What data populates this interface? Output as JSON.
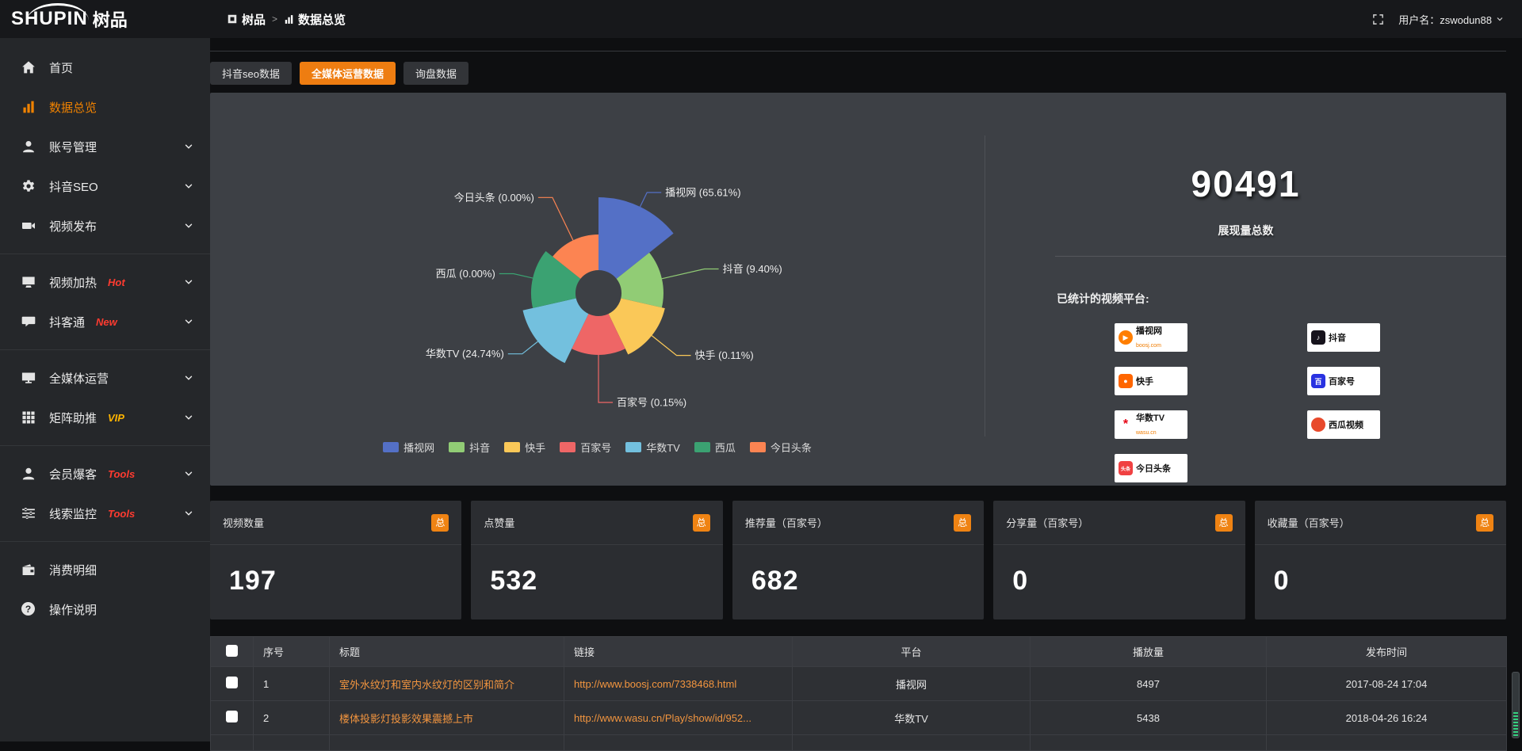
{
  "logo": {
    "latin": "SHUPIN",
    "cjk": "树品"
  },
  "topbar": {
    "breadcrumb_root": "树品",
    "breadcrumb_sep": ">",
    "breadcrumb_current": "数据总览",
    "username": "用户名：zswodun88"
  },
  "sidebar": {
    "items": [
      {
        "key": "home",
        "icon": "home",
        "label": "首页"
      },
      {
        "key": "data-overview",
        "icon": "chart",
        "label": "数据总览",
        "active": true
      },
      {
        "key": "account-manage",
        "icon": "user",
        "label": "账号管理",
        "chevron": true
      },
      {
        "key": "douyin-seo",
        "icon": "gear",
        "label": "抖音SEO",
        "chevron": true
      },
      {
        "key": "video-publish",
        "icon": "video",
        "label": "视频发布",
        "chevron": true,
        "divider_after": true
      },
      {
        "key": "video-heat",
        "icon": "heat",
        "label": "视频加热",
        "badge": "Hot",
        "badge_color": "#ff3b30",
        "chevron": true
      },
      {
        "key": "douketong",
        "icon": "chat",
        "label": "抖客通",
        "badge": "New",
        "badge_color": "#ff3b30",
        "chevron": true,
        "divider_after": true
      },
      {
        "key": "omni-media",
        "icon": "screen",
        "label": "全媒体运营",
        "chevron": true
      },
      {
        "key": "matrix-boost",
        "icon": "grid",
        "label": "矩阵助推",
        "badge": "VIP",
        "badge_color": "#ffb400",
        "chevron": true,
        "divider_after": true
      },
      {
        "key": "member-burst",
        "icon": "member",
        "label": "会员爆客",
        "badge": "Tools",
        "badge_color": "#ff3b30",
        "chevron": true
      },
      {
        "key": "clue-monitor",
        "icon": "sliders",
        "label": "线索监控",
        "badge": "Tools",
        "badge_color": "#ff3b30",
        "chevron": true,
        "divider_after": true
      },
      {
        "key": "consume-detail",
        "icon": "wallet",
        "label": "消费明细"
      },
      {
        "key": "help",
        "icon": "help",
        "label": "操作说明"
      }
    ]
  },
  "tabs": [
    {
      "key": "douyin-seo-data",
      "label": "抖音seo数据",
      "active": false
    },
    {
      "key": "omni-media-data",
      "label": "全媒体运营数据",
      "active": true
    },
    {
      "key": "inquiry-data",
      "label": "询盘数据",
      "active": false
    }
  ],
  "chart_data": {
    "type": "pie",
    "variant": "nightingale-rose",
    "inner_radius": 29,
    "legend_position": "bottom",
    "label_format": "{name} ({value}%)",
    "slices": [
      {
        "name": "播视网",
        "value": 65.61,
        "label": "播视网 (65.61%)",
        "radius": 121,
        "color": "#5470c6"
      },
      {
        "name": "抖音",
        "value": 9.4,
        "label": "抖音 (9.40%)",
        "radius": 82,
        "color": "#91cc75"
      },
      {
        "name": "快手",
        "value": 0.11,
        "label": "快手 (0.11%)",
        "radius": 86,
        "color": "#fac858"
      },
      {
        "name": "百家号",
        "value": 0.15,
        "label": "百家号 (0.15%)",
        "radius": 78,
        "color": "#ee6666"
      },
      {
        "name": "华数TV",
        "value": 24.74,
        "label": "华数TV (24.74%)",
        "radius": 98,
        "color": "#73c0de"
      },
      {
        "name": "西瓜",
        "value": 0.0,
        "label": "西瓜 (0.00%)",
        "radius": 85,
        "color": "#3ba272"
      },
      {
        "name": "今日头条",
        "value": 0.0,
        "label": "今日头条 (0.00%)",
        "radius": 74,
        "color": "#fc8452"
      }
    ]
  },
  "summary": {
    "total_value": "90491",
    "total_label": "展现量总数",
    "platforms_label": "已统计的视频平台:",
    "chips_left": [
      {
        "icon": "boosj",
        "name": "播视网",
        "sub": "boosj.com",
        "color": "#ff7e00",
        "shape": "circle",
        "glyph": "▶"
      },
      {
        "icon": "kuaishou",
        "name": "快手",
        "color": "#ff6600",
        "shape": "square",
        "glyph": "●"
      },
      {
        "icon": "wasu",
        "name": "华数TV",
        "sub": "wasu.cn",
        "color": "#e60012",
        "shape": "plain",
        "glyph": "*"
      },
      {
        "icon": "toutiao",
        "name": "今日头条",
        "color": "#f04142",
        "shape": "square",
        "glyph": "头条"
      }
    ],
    "chips_right": [
      {
        "icon": "douyin",
        "name": "抖音",
        "color": "#16131c",
        "shape": "square",
        "glyph": "♪"
      },
      {
        "icon": "baijia",
        "name": "百家号",
        "color": "#2932e1",
        "shape": "square",
        "glyph": "百"
      },
      {
        "icon": "xigua",
        "name": "西瓜视频",
        "color": "#e8492b",
        "shape": "circle",
        "glyph": ""
      }
    ]
  },
  "stat_cards": [
    {
      "title": "视频数量",
      "badge": "总",
      "value": "197"
    },
    {
      "title": "点赞量",
      "badge": "总",
      "value": "532"
    },
    {
      "title": "推荐量（百家号）",
      "badge": "总",
      "value": "682"
    },
    {
      "title": "分享量（百家号）",
      "badge": "总",
      "value": "0"
    },
    {
      "title": "收藏量（百家号）",
      "badge": "总",
      "value": "0"
    }
  ],
  "table": {
    "headers": [
      "序号",
      "标题",
      "链接",
      "平台",
      "播放量",
      "发布时间"
    ],
    "rows": [
      {
        "index": "1",
        "title": "室外水纹灯和室内水纹灯的区别和简介",
        "link": "http://www.boosj.com/7338468.html",
        "platform": "播视网",
        "views": "8497",
        "time": "2017-08-24 17:04"
      },
      {
        "index": "2",
        "title": "楼体投影灯投影效果震撼上市",
        "link": "http://www.wasu.cn/Play/show/id/952...",
        "platform": "华数TV",
        "views": "5438",
        "time": "2018-04-26 16:24"
      }
    ]
  },
  "colors": {
    "accent_orange": "#ee7d11",
    "badge_orange": "#ef8313",
    "link_orange": "#f2953f",
    "sidebar_active": "#f08200",
    "panel_bg": "#3d4045",
    "card_bg": "#2b2d31"
  }
}
